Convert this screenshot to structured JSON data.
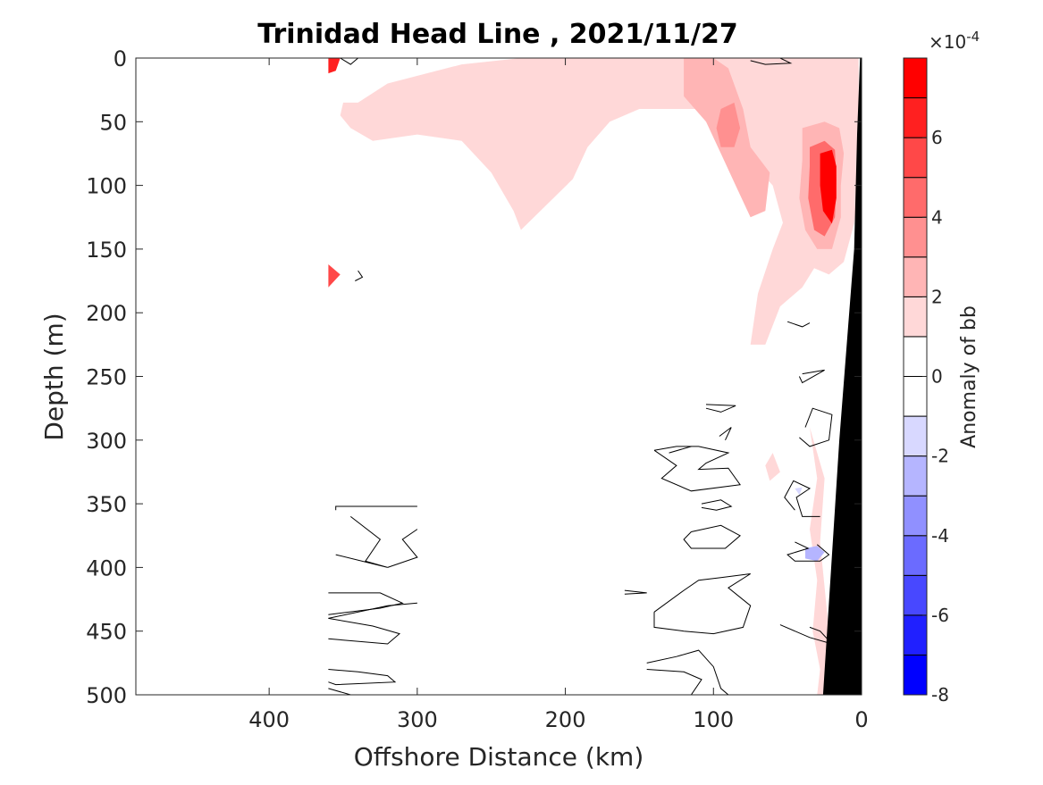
{
  "chart_data": {
    "type": "heatmap",
    "subtype": "filled contour section",
    "title": "Trinidad Head Line , 2021/11/27",
    "xlabel": "Offshore Distance (km)",
    "ylabel": "Depth (m)",
    "xlim": [
      490,
      0
    ],
    "ylim": [
      0,
      500
    ],
    "x_reversed": true,
    "y_reversed": true,
    "x_ticks": [
      400,
      300,
      200,
      100,
      0
    ],
    "y_ticks": [
      0,
      50,
      100,
      150,
      200,
      250,
      300,
      350,
      400,
      450,
      500
    ],
    "colorbar": {
      "label": "Anomaly of bb",
      "exponent_label": "×10",
      "exponent_power": "-4",
      "range": [
        -8,
        8
      ],
      "ticks": [
        -8,
        -6,
        -4,
        -2,
        0,
        2,
        4,
        6
      ],
      "levels": [
        {
          "lo": -8,
          "hi": -7,
          "color": "#0000ff"
        },
        {
          "lo": -7,
          "hi": -6,
          "color": "#2020ff"
        },
        {
          "lo": -6,
          "hi": -5,
          "color": "#4848ff"
        },
        {
          "lo": -5,
          "hi": -4,
          "color": "#6b6bff"
        },
        {
          "lo": -4,
          "hi": -3,
          "color": "#9090ff"
        },
        {
          "lo": -3,
          "hi": -2,
          "color": "#b5b5ff"
        },
        {
          "lo": -2,
          "hi": -1,
          "color": "#d8d8ff"
        },
        {
          "lo": -1,
          "hi": 0,
          "color": "#ffffff"
        },
        {
          "lo": 0,
          "hi": 1,
          "color": "#ffffff"
        },
        {
          "lo": 1,
          "hi": 2,
          "color": "#ffd8d8"
        },
        {
          "lo": 2,
          "hi": 3,
          "color": "#ffb5b5"
        },
        {
          "lo": 3,
          "hi": 4,
          "color": "#ff9090"
        },
        {
          "lo": 4,
          "hi": 5,
          "color": "#ff6b6b"
        },
        {
          "lo": 5,
          "hi": 6,
          "color": "#ff4848"
        },
        {
          "lo": 6,
          "hi": 7,
          "color": "#ff2020"
        },
        {
          "lo": 7,
          "hi": 8,
          "color": "#ff0000"
        }
      ]
    },
    "regions": [
      {
        "name": "positive-anomaly-shelf",
        "level": 1.5,
        "points": [
          [
            340,
            35
          ],
          [
            320,
            20
          ],
          [
            270,
            5
          ],
          [
            230,
            0
          ],
          [
            170,
            0
          ],
          [
            130,
            0
          ],
          [
            100,
            0
          ],
          [
            80,
            0
          ],
          [
            40,
            0
          ],
          [
            20,
            0
          ],
          [
            10,
            0
          ],
          [
            2,
            0
          ],
          [
            2,
            100
          ],
          [
            5,
            130
          ],
          [
            12,
            160
          ],
          [
            22,
            170
          ],
          [
            32,
            165
          ],
          [
            40,
            180
          ],
          [
            55,
            195
          ],
          [
            65,
            225
          ],
          [
            75,
            225
          ],
          [
            70,
            185
          ],
          [
            60,
            150
          ],
          [
            50,
            120
          ],
          [
            40,
            90
          ],
          [
            35,
            65
          ],
          [
            32,
            80
          ],
          [
            30,
            105
          ],
          [
            30,
            135
          ],
          [
            34,
            150
          ],
          [
            45,
            150
          ],
          [
            53,
            130
          ],
          [
            60,
            100
          ],
          [
            72,
            85
          ],
          [
            80,
            70
          ],
          [
            90,
            60
          ],
          [
            110,
            40
          ],
          [
            125,
            40
          ],
          [
            150,
            40
          ],
          [
            170,
            50
          ],
          [
            185,
            70
          ],
          [
            195,
            95
          ],
          [
            230,
            135
          ],
          [
            235,
            120
          ],
          [
            250,
            90
          ],
          [
            270,
            65
          ],
          [
            300,
            60
          ],
          [
            330,
            65
          ],
          [
            345,
            55
          ],
          [
            352,
            45
          ],
          [
            350,
            35
          ]
        ]
      },
      {
        "name": "positive-anomaly-core",
        "level": 2.5,
        "points": [
          [
            120,
            0
          ],
          [
            100,
            0
          ],
          [
            90,
            8
          ],
          [
            80,
            40
          ],
          [
            75,
            70
          ],
          [
            62,
            90
          ],
          [
            65,
            120
          ],
          [
            75,
            125
          ],
          [
            85,
            100
          ],
          [
            95,
            75
          ],
          [
            105,
            50
          ],
          [
            120,
            30
          ]
        ]
      },
      {
        "name": "positive-anomaly-inshore",
        "level": 2.5,
        "points": [
          [
            40,
            55
          ],
          [
            25,
            50
          ],
          [
            15,
            55
          ],
          [
            12,
            75
          ],
          [
            14,
            100
          ],
          [
            14,
            125
          ],
          [
            20,
            150
          ],
          [
            30,
            150
          ],
          [
            38,
            135
          ],
          [
            42,
            110
          ],
          [
            40,
            80
          ]
        ]
      },
      {
        "name": "positive-anomaly-inshore-inner",
        "level": 4.5,
        "points": [
          [
            35,
            70
          ],
          [
            25,
            65
          ],
          [
            18,
            72
          ],
          [
            17,
            95
          ],
          [
            18,
            125
          ],
          [
            25,
            140
          ],
          [
            32,
            135
          ],
          [
            36,
            110
          ],
          [
            35,
            85
          ]
        ]
      },
      {
        "name": "positive-anomaly-inshore-core",
        "level": 7.5,
        "points": [
          [
            28,
            75
          ],
          [
            20,
            72
          ],
          [
            17,
            85
          ],
          [
            17,
            110
          ],
          [
            20,
            130
          ],
          [
            26,
            120
          ],
          [
            28,
            100
          ]
        ]
      },
      {
        "name": "positive-anomaly-offshore-midcore",
        "level": 3.5,
        "points": [
          [
            95,
            40
          ],
          [
            86,
            35
          ],
          [
            82,
            55
          ],
          [
            86,
            70
          ],
          [
            95,
            70
          ],
          [
            98,
            55
          ]
        ]
      },
      {
        "name": "positive-anomaly-offshore-top",
        "level": 6.5,
        "points": [
          [
            360,
            0
          ],
          [
            352,
            0
          ],
          [
            355,
            10
          ],
          [
            360,
            12
          ]
        ]
      },
      {
        "name": "positive-anomaly-offshore-mid",
        "level": 5.5,
        "points": [
          [
            360,
            162
          ],
          [
            352,
            170
          ],
          [
            360,
            180
          ]
        ]
      },
      {
        "name": "positive-anomaly-patch",
        "level": 1.5,
        "points": [
          [
            65,
            320
          ],
          [
            60,
            310
          ],
          [
            55,
            325
          ],
          [
            62,
            332
          ]
        ]
      },
      {
        "name": "positive-anomaly-coastal-deep",
        "level": 1.5,
        "points": [
          [
            35,
            290
          ],
          [
            30,
            330
          ],
          [
            35,
            370
          ],
          [
            30,
            410
          ],
          [
            33,
            450
          ],
          [
            28,
            480
          ],
          [
            30,
            500
          ],
          [
            24,
            500
          ],
          [
            22,
            450
          ],
          [
            28,
            380
          ],
          [
            25,
            330
          ]
        ]
      },
      {
        "name": "negative-anomaly",
        "level": -2.5,
        "points": [
          [
            38,
            385
          ],
          [
            30,
            383
          ],
          [
            25,
            388
          ],
          [
            30,
            395
          ],
          [
            38,
            393
          ]
        ]
      },
      {
        "name": "negative-anomaly-small",
        "level": -1.5,
        "points": [
          [
            45,
            338
          ],
          [
            40,
            337
          ],
          [
            42,
            343
          ]
        ]
      }
    ],
    "zero_contours": [
      [
        [
          300,
          352
        ],
        [
          355,
          352
        ],
        [
          355,
          355
        ]
      ],
      [
        [
          345,
          360
        ],
        [
          325,
          378
        ],
        [
          335,
          395
        ],
        [
          320,
          400
        ],
        [
          355,
          390
        ]
      ],
      [
        [
          300,
          370
        ],
        [
          310,
          378
        ],
        [
          300,
          392
        ],
        [
          320,
          400
        ]
      ],
      [
        [
          360,
          420
        ],
        [
          325,
          420
        ],
        [
          310,
          428
        ],
        [
          325,
          432
        ],
        [
          360,
          437
        ]
      ],
      [
        [
          360,
          440
        ],
        [
          320,
          430
        ],
        [
          300,
          428
        ]
      ],
      [
        [
          360,
          456
        ],
        [
          320,
          460
        ],
        [
          312,
          452
        ],
        [
          330,
          446
        ],
        [
          360,
          440
        ]
      ],
      [
        [
          360,
          480
        ],
        [
          340,
          482
        ],
        [
          320,
          485
        ],
        [
          315,
          490
        ],
        [
          355,
          492
        ],
        [
          360,
          490
        ]
      ],
      [
        [
          360,
          495
        ],
        [
          345,
          500
        ]
      ],
      [
        [
          140,
          308
        ],
        [
          125,
          320
        ],
        [
          135,
          330
        ],
        [
          115,
          340
        ],
        [
          82,
          335
        ],
        [
          90,
          322
        ],
        [
          110,
          323
        ],
        [
          105,
          318
        ],
        [
          90,
          310
        ],
        [
          110,
          305
        ],
        [
          125,
          305
        ],
        [
          140,
          308
        ]
      ],
      [
        [
          130,
          310
        ],
        [
          115,
          305
        ]
      ],
      [
        [
          105,
          272
        ],
        [
          85,
          273
        ],
        [
          95,
          278
        ],
        [
          105,
          275
        ]
      ],
      [
        [
          96,
          297
        ],
        [
          88,
          290
        ],
        [
          92,
          300
        ]
      ],
      [
        [
          108,
          350
        ],
        [
          95,
          347
        ],
        [
          88,
          352
        ],
        [
          98,
          355
        ],
        [
          108,
          353
        ]
      ],
      [
        [
          115,
          372
        ],
        [
          95,
          367
        ],
        [
          82,
          375
        ],
        [
          92,
          385
        ],
        [
          115,
          385
        ],
        [
          120,
          378
        ],
        [
          115,
          372
        ]
      ],
      [
        [
          160,
          418
        ],
        [
          145,
          420
        ],
        [
          160,
          421
        ]
      ],
      [
        [
          140,
          435
        ],
        [
          120,
          418
        ],
        [
          110,
          410
        ],
        [
          95,
          408
        ],
        [
          75,
          405
        ],
        [
          90,
          416
        ],
        [
          75,
          430
        ],
        [
          80,
          447
        ],
        [
          100,
          452
        ],
        [
          120,
          450
        ],
        [
          140,
          447
        ],
        [
          140,
          435
        ]
      ],
      [
        [
          145,
          475
        ],
        [
          125,
          470
        ],
        [
          110,
          465
        ],
        [
          100,
          478
        ],
        [
          95,
          495
        ],
        [
          90,
          500
        ],
        [
          115,
          500
        ],
        [
          108,
          488
        ],
        [
          120,
          482
        ],
        [
          145,
          480
        ]
      ],
      [
        [
          70,
          0
        ],
        [
          55,
          0
        ],
        [
          48,
          4
        ],
        [
          65,
          5
        ],
        [
          75,
          2
        ]
      ],
      [
        [
          340,
          0
        ],
        [
          345,
          5
        ],
        [
          352,
          0
        ]
      ],
      [
        [
          340,
          167
        ],
        [
          337,
          172
        ],
        [
          342,
          175
        ]
      ],
      [
        [
          40,
          248
        ],
        [
          25,
          245
        ],
        [
          40,
          255
        ],
        [
          42,
          250
        ]
      ],
      [
        [
          45,
          355
        ],
        [
          52,
          345
        ],
        [
          46,
          332
        ],
        [
          35,
          338
        ],
        [
          44,
          345
        ],
        [
          40,
          360
        ],
        [
          28,
          360
        ]
      ],
      [
        [
          38,
          290
        ],
        [
          33,
          275
        ],
        [
          20,
          280
        ],
        [
          22,
          300
        ],
        [
          35,
          305
        ],
        [
          42,
          298
        ]
      ],
      [
        [
          45,
          380
        ],
        [
          36,
          385
        ],
        [
          50,
          390
        ],
        [
          45,
          395
        ],
        [
          28,
          395
        ],
        [
          22,
          390
        ],
        [
          30,
          382
        ]
      ],
      [
        [
          55,
          445
        ],
        [
          35,
          455
        ],
        [
          20,
          460
        ],
        [
          28,
          450
        ],
        [
          35,
          447
        ]
      ],
      [
        [
          50,
          207
        ],
        [
          40,
          211
        ],
        [
          35,
          208
        ]
      ]
    ],
    "bathymetry_polygon": [
      [
        0,
        0
      ],
      [
        0,
        500
      ],
      [
        26,
        500
      ],
      [
        15,
        300
      ],
      [
        5,
        150
      ],
      [
        3,
        60
      ],
      [
        1,
        0
      ]
    ]
  },
  "colors": {
    "axis": "#262626",
    "contour_line": "#000000",
    "land": "#000000"
  }
}
